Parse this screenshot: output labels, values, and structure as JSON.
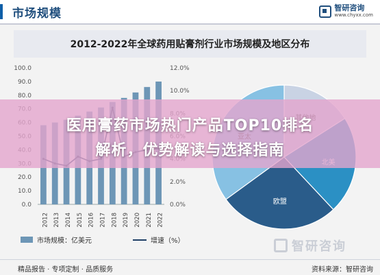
{
  "header": {
    "title": "市场规模",
    "brand_name": "智研咨询",
    "brand_url": "www.chyxx.com"
  },
  "main_title": "2012-2022年全球药用贴膏剂行业市场规模及地区分布",
  "overlay": {
    "line1": "医用膏药市场热门产品TOP10排名",
    "line2": "解析，优势解读与选择指南"
  },
  "legend": {
    "bar_label": "市场规模：亿美元",
    "line_label": "增速（%）"
  },
  "watermark": {
    "name": "智研咨询"
  },
  "footer": {
    "left": "精品报告 · 专项定制 · 品质服务",
    "right": "资料来源：智研咨询"
  },
  "colors": {
    "bar": "#6d96b6",
    "line": "#1f3f66",
    "pie_other": "#c9d3e4",
    "pie_na": "#2b90c4",
    "pie_eu": "#2a5c8a",
    "pie_ap": "#87c1e3"
  },
  "chart_data": [
    {
      "type": "bar",
      "categories": [
        "2012",
        "2013",
        "2014",
        "2015",
        "2016",
        "2017",
        "2018",
        "2019",
        "2020",
        "2021",
        "2022"
      ],
      "series": [
        {
          "name": "市场规模：亿美元",
          "type": "bar",
          "axis": "left",
          "values": [
            58,
            60,
            62,
            65,
            68,
            71,
            75,
            78,
            82,
            86,
            90
          ]
        },
        {
          "name": "增速（%）",
          "type": "line",
          "axis": "right",
          "values": [
            4.0,
            3.6,
            3.4,
            4.2,
            3.8,
            4.0,
            8.5,
            4.2,
            4.6,
            4.8,
            4.9
          ]
        }
      ],
      "yticks_left": [
        "0.0",
        "10.0",
        "20.0",
        "30.0",
        "40.0",
        "50.0",
        "60.0",
        "70.0",
        "80.0",
        "90.0",
        "100.0"
      ],
      "yticks_right": [
        "0.0%",
        "2.0%",
        "4.0%",
        "6.0%",
        "8.0%",
        "10.0%",
        "12.0%"
      ],
      "ylim_left": [
        0,
        100
      ],
      "ylim_right": [
        0,
        12
      ]
    },
    {
      "type": "pie",
      "labels": [
        "其他地",
        "北美",
        "欧盟",
        "亚太"
      ],
      "values": [
        16,
        22,
        27,
        35
      ],
      "colors_key": [
        "pie_other",
        "pie_na",
        "pie_eu",
        "pie_ap"
      ]
    }
  ]
}
